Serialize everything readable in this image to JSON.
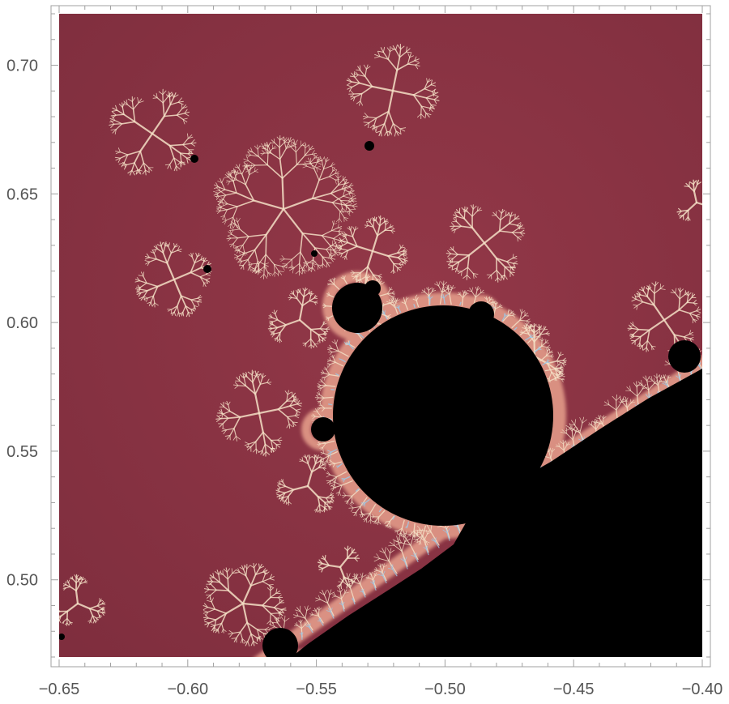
{
  "chart_data": {
    "type": "heatmap",
    "title": "",
    "xlabel": "",
    "ylabel": "",
    "xlim": [
      -0.65,
      -0.4
    ],
    "ylim": [
      0.47,
      0.72
    ],
    "x_ticks": [
      -0.65,
      -0.6,
      -0.55,
      -0.5,
      -0.45,
      -0.4
    ],
    "x_tick_labels": [
      "−0.65",
      "−0.60",
      "−0.55",
      "−0.50",
      "−0.45",
      "−0.40"
    ],
    "y_ticks": [
      0.5,
      0.55,
      0.6,
      0.65,
      0.7
    ],
    "y_tick_labels": [
      "0.50",
      "0.55",
      "0.60",
      "0.65",
      "0.70"
    ],
    "grid": false,
    "colors": {
      "background": "#8a3444",
      "set_interior": "#000000",
      "filament_light": "#f4dfc5",
      "filament_blue": "#9cc9e6",
      "frame": "#a0a0a0"
    }
  }
}
